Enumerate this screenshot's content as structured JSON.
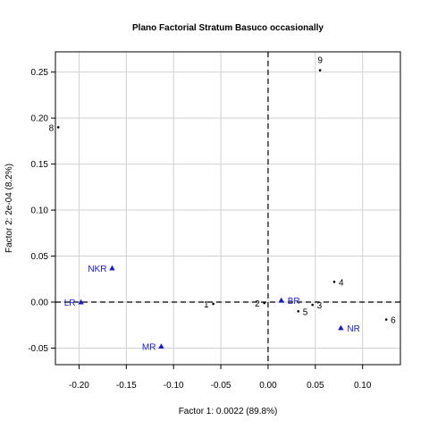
{
  "chart_data": {
    "type": "scatter",
    "title": "Plano Factorial Stratum Basuco occasionally",
    "xlabel": "Factor 1: 0.0022 (89.8%)",
    "ylabel": "Factor 2: 2e-04 (8.2%)",
    "xlim": [
      -0.225,
      0.14
    ],
    "ylim": [
      -0.068,
      0.272
    ],
    "xticks": [
      -0.2,
      -0.15,
      -0.1,
      -0.05,
      0.0,
      0.05,
      0.1
    ],
    "xtick_labels": [
      "-0.20",
      "-0.15",
      "-0.10",
      "-0.05",
      "0.00",
      "0.05",
      "0.10"
    ],
    "yticks": [
      -0.05,
      0.0,
      0.05,
      0.1,
      0.15,
      0.2,
      0.25
    ],
    "ytick_labels": [
      "-0.05",
      "0.00",
      "0.05",
      "0.10",
      "0.15",
      "0.20",
      "0.25"
    ],
    "grid": true,
    "reference_lines": {
      "x": 0,
      "y": 0,
      "style": "dashed"
    },
    "colors": {
      "rows": "#000000",
      "columns": "#1a1acc"
    },
    "series": [
      {
        "marker": "point",
        "points": [
          {
            "label": "1",
            "x": -0.058,
            "y": -0.002
          },
          {
            "label": "2",
            "x": -0.004,
            "y": -0.001
          },
          {
            "label": "3",
            "x": 0.047,
            "y": -0.003
          },
          {
            "label": "4",
            "x": 0.07,
            "y": 0.022
          },
          {
            "label": "5",
            "x": 0.032,
            "y": -0.01
          },
          {
            "label": "6",
            "x": 0.125,
            "y": -0.019
          },
          {
            "label": "8",
            "x": -0.222,
            "y": 0.19
          },
          {
            "label": "9",
            "x": 0.055,
            "y": 0.252
          }
        ]
      },
      {
        "marker": "triangle",
        "points": [
          {
            "label": "NKR",
            "x": -0.165,
            "y": 0.037
          },
          {
            "label": "LR",
            "x": -0.198,
            "y": 0.0
          },
          {
            "label": "MR",
            "x": -0.113,
            "y": -0.048
          },
          {
            "label": "BR",
            "x": 0.014,
            "y": 0.002
          },
          {
            "label": "NR",
            "x": 0.077,
            "y": -0.028
          }
        ]
      }
    ]
  }
}
